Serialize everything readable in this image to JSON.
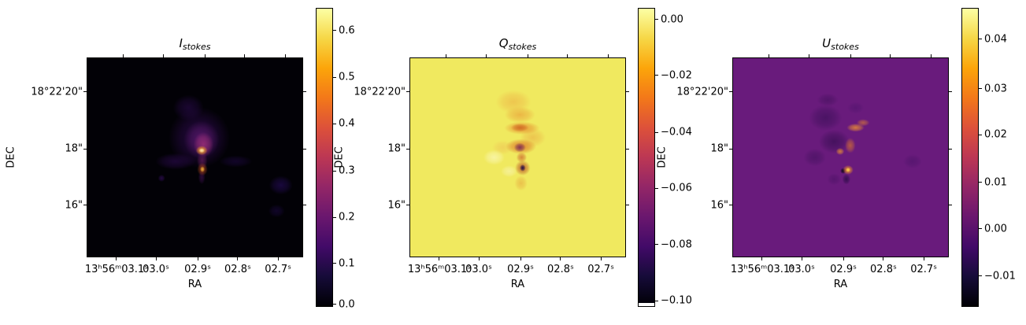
{
  "shared": {
    "xlabel": "RA",
    "ylabel": "DEC",
    "x_tick_labels": [
      "13ʰ56ᵐ03.1ˢ",
      "03.0ˢ",
      "02.9ˢ",
      "02.8ˢ",
      "02.7ˢ"
    ],
    "x_tick_pos_pct": [
      13.8,
      32.0,
      51.3,
      69.8,
      88.4
    ],
    "y_tick_labels": [
      "18°22'20\"",
      "18\"",
      "16\""
    ],
    "y_tick_pos_pct": [
      17.3,
      45.7,
      74.0
    ]
  },
  "colors": {
    "figure_background": "#ffffff",
    "axis_color": "#000000",
    "text_color": "#000000",
    "inferno_stops": [
      "#000004",
      "#160b39",
      "#420a68",
      "#6a176e",
      "#932667",
      "#bc3754",
      "#dd513a",
      "#f37819",
      "#fca50a",
      "#f6d746",
      "#fcffa4"
    ]
  },
  "panels": [
    {
      "name": "I_stokes",
      "title_main": "I",
      "title_sub": "stokes",
      "image": {
        "base": "#020106",
        "features": [
          [
            53.2,
            46.5,
            5,
            4,
            "#fee9b0",
            1.0
          ],
          [
            53.2,
            46.5,
            10,
            8,
            "#f6a425",
            0.95
          ],
          [
            53.5,
            56.0,
            4,
            5,
            "#f3b33a",
            0.95
          ],
          [
            53.5,
            56.0,
            9,
            11,
            "#b2451f",
            0.75
          ],
          [
            54.0,
            43.5,
            17,
            21,
            "#a03078",
            0.8
          ],
          [
            53.0,
            41.0,
            30,
            32,
            "#5c1a6e",
            0.8
          ],
          [
            53.4,
            51.5,
            9,
            16,
            "#6d2064",
            0.65
          ],
          [
            53.2,
            60.0,
            6,
            12,
            "#451057",
            0.6
          ],
          [
            52.0,
            40.0,
            52,
            52,
            "#300b52",
            0.75
          ],
          [
            47.0,
            25.0,
            26,
            22,
            "#250944",
            0.7
          ],
          [
            41.0,
            52.0,
            34,
            14,
            "#2b0a4e",
            0.65
          ],
          [
            69.0,
            52.0,
            28,
            10,
            "#1f0845",
            0.55
          ],
          [
            90.0,
            64.0,
            20,
            16,
            "#1d0946",
            0.85
          ],
          [
            88.0,
            77.0,
            14,
            11,
            "#170738",
            0.7
          ],
          [
            34.5,
            60.5,
            6,
            6,
            "#2c0b50",
            0.8
          ]
        ]
      },
      "colorbar": {
        "white_base": false,
        "ticks": [
          {
            "label": "0.6",
            "pct": 7.6
          },
          {
            "label": "0.5",
            "pct": 23.2
          },
          {
            "label": "0.4",
            "pct": 38.7
          },
          {
            "label": "0.3",
            "pct": 54.5
          },
          {
            "label": "0.2",
            "pct": 70.0
          },
          {
            "label": "0.1",
            "pct": 85.5
          },
          {
            "label": "0.0",
            "pct": 99.2
          }
        ]
      }
    },
    {
      "name": "Q_stokes",
      "title_main": "Q",
      "title_sub": "stokes",
      "image": {
        "base": "#f0e95f",
        "features": [
          [
            52.3,
            55.3,
            5,
            6,
            "#241047",
            1.0
          ],
          [
            52.3,
            55.3,
            13,
            13,
            "#bc5a28",
            0.85
          ],
          [
            51.0,
            45.0,
            10,
            8,
            "#7c2c55",
            0.9
          ],
          [
            51.5,
            44.5,
            26,
            13,
            "#dd7c2a",
            0.9
          ],
          [
            51.0,
            35.0,
            15,
            7,
            "#d06a24",
            0.9
          ],
          [
            52.0,
            35.2,
            30,
            11,
            "#e68e30",
            0.85
          ],
          [
            51.8,
            50.0,
            9,
            9,
            "#cf7030",
            0.8
          ],
          [
            48.0,
            22.0,
            30,
            20,
            "#eec04c",
            0.85
          ],
          [
            51.0,
            28.5,
            26,
            14,
            "#eaaa3e",
            0.8
          ],
          [
            57.0,
            40.0,
            22,
            16,
            "#eaad44",
            0.6
          ],
          [
            51.5,
            63.0,
            11,
            13,
            "#e6a83e",
            0.6
          ],
          [
            39.0,
            50.0,
            18,
            13,
            "#f9f5a8",
            0.9
          ],
          [
            46.0,
            57.0,
            14,
            10,
            "#f7f2a2",
            0.8
          ],
          [
            43.0,
            45.0,
            18,
            12,
            "#eec455",
            0.6
          ]
        ]
      },
      "colorbar": {
        "white_base": true,
        "ticks": [
          {
            "label": "0.00",
            "pct": 3.9
          },
          {
            "label": "−0.02",
            "pct": 22.6
          },
          {
            "label": "−0.04",
            "pct": 41.6
          },
          {
            "label": "−0.06",
            "pct": 60.3
          },
          {
            "label": "−0.08",
            "pct": 79.2
          },
          {
            "label": "−0.10",
            "pct": 97.9
          }
        ]
      }
    },
    {
      "name": "U_stokes",
      "title_main": "U",
      "title_sub": "stokes",
      "image": {
        "base": "#691b7c",
        "features": [
          [
            53.5,
            56.3,
            4,
            4,
            "#fdd44e",
            1.0
          ],
          [
            53.5,
            56.3,
            9,
            8,
            "#ef9428",
            0.9
          ],
          [
            51.2,
            56.8,
            5,
            5,
            "#0f0418",
            0.95
          ],
          [
            52.7,
            61.0,
            7,
            9,
            "#2f0c4a",
            0.85
          ],
          [
            57.0,
            35.0,
            15,
            7,
            "#e08438",
            0.9
          ],
          [
            60.5,
            32.5,
            11,
            6,
            "#d2743a",
            0.7
          ],
          [
            54.5,
            44.0,
            9,
            13,
            "#cf6c34",
            0.75
          ],
          [
            49.8,
            47.0,
            7,
            6,
            "#df8838",
            0.85
          ],
          [
            43.0,
            30.0,
            28,
            22,
            "#451260",
            0.85
          ],
          [
            47.0,
            42.0,
            26,
            20,
            "#3f1059",
            0.85
          ],
          [
            38.0,
            50.0,
            19,
            15,
            "#4a1364",
            0.75
          ],
          [
            44.0,
            21.0,
            18,
            11,
            "#4a1262",
            0.7
          ],
          [
            83.5,
            52.0,
            16,
            12,
            "#54156e",
            0.8
          ],
          [
            57.0,
            25.0,
            14,
            10,
            "#551570",
            0.7
          ],
          [
            47.0,
            61.0,
            12,
            10,
            "#4c1266",
            0.6
          ]
        ]
      },
      "colorbar": {
        "white_base": false,
        "ticks": [
          {
            "label": "0.04",
            "pct": 10.5
          },
          {
            "label": "0.03",
            "pct": 27.1
          },
          {
            "label": "0.02",
            "pct": 42.4
          },
          {
            "label": "0.01",
            "pct": 58.4
          },
          {
            "label": "0.00",
            "pct": 73.9
          },
          {
            "label": "−0.01",
            "pct": 89.7
          }
        ]
      }
    }
  ],
  "chart_data": [
    {
      "type": "heatmap",
      "title": "I_stokes",
      "colormap": "inferno",
      "x_axis": {
        "label": "RA",
        "tick_labels": [
          "13h56m03.1s",
          "03.0s",
          "02.9s",
          "02.8s",
          "02.7s"
        ]
      },
      "y_axis": {
        "label": "DEC",
        "tick_labels": [
          "18°22'20\"",
          "18\"",
          "16\""
        ]
      },
      "colorbar_tick_values": [
        0.6,
        0.5,
        0.4,
        0.3,
        0.2,
        0.1,
        0.0
      ],
      "value_range": [
        0.0,
        0.65
      ],
      "background_level": 0.0,
      "peaks": [
        {
          "ra": "13h56m02.9s",
          "dec": "18°22'18\"",
          "value": 0.65
        },
        {
          "ra": "13h56m02.9s",
          "dec": "18°22'17\"",
          "value": 0.45
        }
      ],
      "description": "Near-black background with compact bright source at RA 13h56m02.9s, DEC 18°22'18\" embedded in faint purple nebulosity; secondary knot just below; faint emission patch near east edge."
    },
    {
      "type": "heatmap",
      "title": "Q_stokes",
      "colormap": "inferno",
      "x_axis": {
        "label": "RA",
        "tick_labels": [
          "13h56m03.1s",
          "03.0s",
          "02.9s",
          "02.8s",
          "02.7s"
        ]
      },
      "y_axis": {
        "label": "DEC",
        "tick_labels": [
          "18°22'20\"",
          "18\"",
          "16\""
        ]
      },
      "colorbar_tick_values": [
        0.0,
        -0.02,
        -0.04,
        -0.06,
        -0.08,
        -0.1
      ],
      "value_range": [
        -0.102,
        0.004
      ],
      "background_level": 0.0,
      "peaks": [
        {
          "ra": "13h56m02.9s",
          "dec": "18°22'17\"",
          "value": -0.09
        }
      ],
      "description": "Uniform pale-yellow background (Q near 0) with a vertical chain of negative-Q orange clumps between DEC 18°22'17\"-19\"; deepest negative compact spot (dark navy) at RA 13h56m02.9s, DEC 18°22'17\"."
    },
    {
      "type": "heatmap",
      "title": "U_stokes",
      "colormap": "inferno",
      "x_axis": {
        "label": "RA",
        "tick_labels": [
          "13h56m03.1s",
          "03.0s",
          "02.9s",
          "02.8s",
          "02.7s"
        ]
      },
      "y_axis": {
        "label": "DEC",
        "tick_labels": [
          "18°22'20\"",
          "18\"",
          "16\""
        ]
      },
      "colorbar_tick_values": [
        0.04,
        0.03,
        0.02,
        0.01,
        0.0,
        -0.01
      ],
      "value_range": [
        -0.0165,
        0.0465
      ],
      "background_level": 0.0,
      "peaks": [
        {
          "ra": "13h56m02.9s",
          "dec": "18°22'17\"",
          "value": 0.045
        }
      ],
      "description": "Mottled purple background (U near 0) with bright positive compact spot at RA 13h56m02.9s, DEC 18°22'17\" next to a negative dark pixel; orange positive arcs northeast of center; dark negative mottling around center."
    }
  ]
}
